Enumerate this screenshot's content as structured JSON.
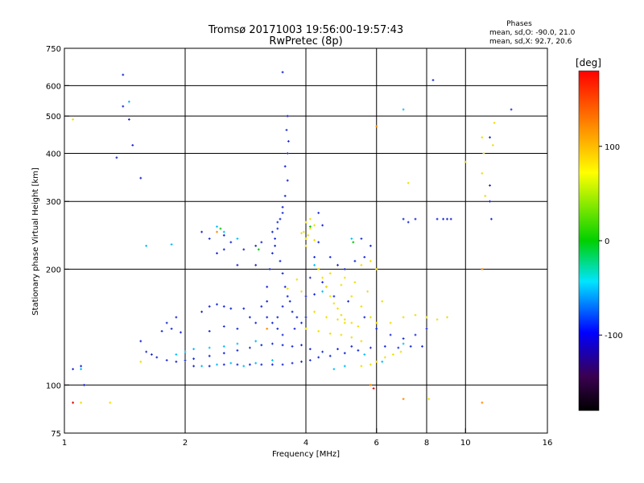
{
  "chart_data": {
    "type": "scatter",
    "title": "Tromsø 20171003 19:56:00-19:57:43",
    "subtitle": "RwPretec (8p)",
    "xlabel": "Frequency [MHz]",
    "ylabel": "Stationary phase Virtual Height [km]",
    "x_scale": "log",
    "y_scale": "log",
    "xlim": [
      1,
      16
    ],
    "ylim": [
      75,
      750
    ],
    "x_ticks": [
      1,
      2,
      4,
      6,
      8,
      10,
      16
    ],
    "y_ticks": [
      75,
      100,
      200,
      300,
      400,
      500,
      600,
      750
    ],
    "grid": true,
    "stats": {
      "heading": "Phases",
      "line_o": "mean, sd,O: -90.0, 21.0",
      "line_x": "mean, sd,X:  92.7, 20.6"
    },
    "colorbar": {
      "label": "[deg]",
      "range": [
        -180,
        180
      ],
      "ticks": [
        100,
        0,
        -100
      ],
      "colors": [
        "#ff0000",
        "#ff8800",
        "#ffff00",
        "#00cc00",
        "#00ffff",
        "#0000ff",
        "#220033",
        "#000000"
      ]
    },
    "series": [
      {
        "color": "#1a2bd6",
        "points": [
          [
            1.4,
            640
          ],
          [
            1.45,
            490
          ],
          [
            1.48,
            420
          ],
          [
            1.4,
            530
          ],
          [
            1.35,
            390
          ],
          [
            1.55,
            345
          ],
          [
            3.5,
            650
          ],
          [
            1.6,
            122
          ],
          [
            1.65,
            120
          ],
          [
            1.7,
            118
          ],
          [
            1.8,
            116
          ],
          [
            1.9,
            115
          ],
          [
            2.0,
            116
          ],
          [
            2.1,
            117
          ],
          [
            2.3,
            119
          ],
          [
            2.5,
            121
          ],
          [
            2.7,
            123
          ],
          [
            2.9,
            125
          ],
          [
            3.1,
            127
          ],
          [
            3.3,
            128
          ],
          [
            3.5,
            127
          ],
          [
            3.7,
            126
          ],
          [
            3.9,
            127
          ],
          [
            4.1,
            124
          ],
          [
            4.4,
            122
          ],
          [
            4.8,
            124
          ],
          [
            5.2,
            126
          ],
          [
            2.1,
            112
          ],
          [
            2.3,
            112
          ],
          [
            2.5,
            113
          ],
          [
            2.7,
            113
          ],
          [
            2.9,
            113
          ],
          [
            3.1,
            113
          ],
          [
            3.3,
            113
          ],
          [
            3.5,
            113
          ],
          [
            3.7,
            114
          ],
          [
            3.9,
            115
          ],
          [
            4.1,
            116
          ],
          [
            4.3,
            118
          ],
          [
            4.6,
            119
          ],
          [
            5.0,
            121
          ],
          [
            5.4,
            123
          ],
          [
            5.8,
            125
          ],
          [
            6.3,
            126
          ],
          [
            6.8,
            125
          ],
          [
            7.3,
            126
          ],
          [
            7.8,
            126
          ],
          [
            2.2,
            155
          ],
          [
            2.3,
            160
          ],
          [
            2.4,
            162
          ],
          [
            2.5,
            160
          ],
          [
            2.6,
            158
          ],
          [
            2.8,
            158
          ],
          [
            2.9,
            150
          ],
          [
            3.0,
            145
          ],
          [
            2.7,
            140
          ],
          [
            2.5,
            142
          ],
          [
            2.3,
            138
          ],
          [
            3.1,
            160
          ],
          [
            3.2,
            165
          ],
          [
            3.2,
            180
          ],
          [
            3.25,
            200
          ],
          [
            3.3,
            220
          ],
          [
            3.35,
            240
          ],
          [
            3.4,
            255
          ],
          [
            3.45,
            270
          ],
          [
            3.5,
            290
          ],
          [
            3.55,
            310
          ],
          [
            3.6,
            340
          ],
          [
            3.55,
            370
          ],
          [
            3.6,
            400
          ],
          [
            3.62,
            430
          ],
          [
            3.58,
            460
          ],
          [
            3.6,
            500
          ],
          [
            3.5,
            280
          ],
          [
            3.4,
            265
          ],
          [
            3.3,
            250
          ],
          [
            3.35,
            230
          ],
          [
            3.45,
            210
          ],
          [
            3.5,
            195
          ],
          [
            3.55,
            180
          ],
          [
            3.6,
            170
          ],
          [
            3.65,
            165
          ],
          [
            3.5,
            160
          ],
          [
            3.4,
            150
          ],
          [
            3.7,
            155
          ],
          [
            3.8,
            150
          ],
          [
            3.2,
            150
          ],
          [
            3.3,
            145
          ],
          [
            3.4,
            140
          ],
          [
            3.5,
            135
          ],
          [
            3.75,
            140
          ],
          [
            3.9,
            145
          ],
          [
            4.0,
            150
          ],
          [
            4.0,
            170
          ],
          [
            4.1,
            190
          ],
          [
            4.2,
            215
          ],
          [
            4.3,
            235
          ],
          [
            4.4,
            260
          ],
          [
            4.3,
            280
          ],
          [
            4.6,
            215
          ],
          [
            4.8,
            205
          ],
          [
            5.0,
            200
          ],
          [
            5.3,
            210
          ],
          [
            5.6,
            215
          ],
          [
            5.8,
            230
          ],
          [
            5.5,
            240
          ],
          [
            4.2,
            172
          ],
          [
            4.4,
            185
          ],
          [
            4.7,
            170
          ],
          [
            5.1,
            165
          ],
          [
            5.6,
            150
          ],
          [
            6.0,
            140
          ],
          [
            6.5,
            135
          ],
          [
            7.0,
            132
          ],
          [
            7.5,
            135
          ],
          [
            8.0,
            140
          ],
          [
            2.8,
            225
          ],
          [
            3.0,
            230
          ],
          [
            3.1,
            235
          ],
          [
            2.7,
            205
          ],
          [
            3.0,
            205
          ],
          [
            2.5,
            225
          ],
          [
            2.4,
            220
          ],
          [
            2.2,
            250
          ],
          [
            2.3,
            240
          ],
          [
            2.5,
            245
          ],
          [
            2.6,
            235
          ],
          [
            1.9,
            150
          ],
          [
            1.8,
            145
          ],
          [
            1.85,
            140
          ],
          [
            1.95,
            137
          ],
          [
            1.75,
            138
          ],
          [
            1.55,
            130
          ],
          [
            7.0,
            270
          ],
          [
            7.2,
            265
          ],
          [
            7.5,
            270
          ],
          [
            8.5,
            270
          ],
          [
            8.8,
            270
          ],
          [
            9.0,
            270
          ],
          [
            9.2,
            270
          ],
          [
            11.5,
            440
          ],
          [
            11.5,
            300
          ],
          [
            11.5,
            330
          ],
          [
            11.6,
            270
          ],
          [
            13.0,
            520
          ],
          [
            8.3,
            620
          ],
          [
            1.05,
            110
          ],
          [
            1.1,
            112
          ],
          [
            1.12,
            100
          ]
        ]
      },
      {
        "color": "#00bfff",
        "points": [
          [
            1.45,
            545
          ],
          [
            7.0,
            520
          ],
          [
            1.1,
            110
          ],
          [
            2.2,
            112
          ],
          [
            2.4,
            113
          ],
          [
            2.6,
            114
          ],
          [
            2.8,
            112
          ],
          [
            3.0,
            114
          ],
          [
            3.3,
            116
          ],
          [
            2.3,
            125
          ],
          [
            2.5,
            126
          ],
          [
            2.7,
            128
          ],
          [
            3.0,
            130
          ],
          [
            2.0,
            122
          ],
          [
            2.1,
            124
          ],
          [
            1.9,
            120
          ],
          [
            2.4,
            258
          ],
          [
            2.5,
            250
          ],
          [
            2.7,
            240
          ],
          [
            1.6,
            230
          ],
          [
            1.85,
            232
          ],
          [
            4.7,
            110
          ],
          [
            5.0,
            112
          ],
          [
            5.6,
            120
          ],
          [
            6.2,
            115
          ],
          [
            7.0,
            128
          ],
          [
            4.4,
            175
          ],
          [
            4.5,
            180
          ],
          [
            4.2,
            205
          ],
          [
            5.2,
            240
          ]
        ]
      },
      {
        "color": "#f0e000",
        "points": [
          [
            4.0,
            230
          ],
          [
            4.05,
            245
          ],
          [
            4.1,
            255
          ],
          [
            4.2,
            260
          ],
          [
            3.95,
            250
          ],
          [
            4.0,
            265
          ],
          [
            4.1,
            270
          ],
          [
            4.0,
            240
          ],
          [
            3.9,
            248
          ],
          [
            4.2,
            238
          ],
          [
            4.3,
            200
          ],
          [
            4.4,
            190
          ],
          [
            4.5,
            180
          ],
          [
            4.6,
            170
          ],
          [
            4.7,
            163
          ],
          [
            4.8,
            158
          ],
          [
            4.9,
            152
          ],
          [
            5.0,
            148
          ],
          [
            5.2,
            145
          ],
          [
            5.4,
            142
          ],
          [
            4.6,
            195
          ],
          [
            4.9,
            182
          ],
          [
            5.2,
            170
          ],
          [
            5.5,
            160
          ],
          [
            5.8,
            150
          ],
          [
            6.0,
            145
          ],
          [
            5.0,
            190
          ],
          [
            5.3,
            185
          ],
          [
            5.7,
            175
          ],
          [
            6.2,
            165
          ],
          [
            4.0,
            140
          ],
          [
            4.3,
            138
          ],
          [
            4.6,
            136
          ],
          [
            4.9,
            135
          ],
          [
            5.2,
            133
          ],
          [
            5.5,
            130
          ],
          [
            4.2,
            155
          ],
          [
            4.5,
            150
          ],
          [
            4.8,
            148
          ],
          [
            5.0,
            145
          ],
          [
            5.5,
            205
          ],
          [
            5.8,
            210
          ],
          [
            6.0,
            200
          ],
          [
            5.5,
            112
          ],
          [
            5.8,
            113
          ],
          [
            6.0,
            115
          ],
          [
            6.3,
            118
          ],
          [
            6.6,
            120
          ],
          [
            6.9,
            122
          ],
          [
            6.5,
            145
          ],
          [
            7.0,
            150
          ],
          [
            7.5,
            152
          ],
          [
            8.0,
            150
          ],
          [
            8.5,
            148
          ],
          [
            9.0,
            150
          ],
          [
            3.6,
            178
          ],
          [
            3.9,
            175
          ],
          [
            3.8,
            188
          ],
          [
            11.0,
            440
          ],
          [
            11.1,
            400
          ],
          [
            11.0,
            355
          ],
          [
            11.2,
            310
          ],
          [
            11.8,
            480
          ],
          [
            11.7,
            420
          ],
          [
            10.0,
            380
          ],
          [
            1.05,
            490
          ],
          [
            1.3,
            90
          ],
          [
            1.1,
            90
          ],
          [
            8.1,
            92
          ],
          [
            1.55,
            115
          ],
          [
            7.2,
            335
          ]
        ]
      },
      {
        "color": "#ff8c00",
        "points": [
          [
            6.0,
            470
          ],
          [
            11.0,
            200
          ],
          [
            7.0,
            92
          ],
          [
            11.0,
            90
          ],
          [
            5.8,
            100
          ],
          [
            2.4,
            250
          ],
          [
            3.2,
            140
          ]
        ]
      },
      {
        "color": "#e00000",
        "points": [
          [
            1.05,
            90
          ],
          [
            5.9,
            98
          ]
        ]
      },
      {
        "color": "#00c800",
        "points": [
          [
            2.45,
            255
          ],
          [
            4.1,
            258
          ],
          [
            5.25,
            235
          ],
          [
            3.05,
            225
          ]
        ]
      }
    ]
  }
}
